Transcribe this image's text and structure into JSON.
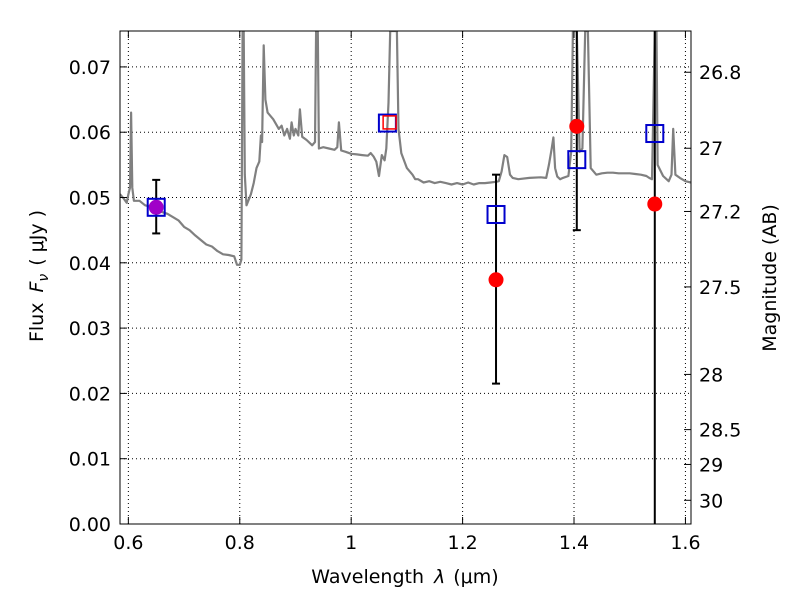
{
  "chart_data": {
    "type": "scatter",
    "xlabel_text": "Wavelength",
    "xlabel_symbol": "λ",
    "xlabel_unit": "(μm)",
    "ylabel_text": "Flux",
    "ylabel_symbol": "F",
    "ylabel_subscript": "ν",
    "ylabel_unit": "( μJy )",
    "y2label": "Magnitude (AB)",
    "xlim": [
      0.585,
      1.61
    ],
    "ylim": [
      0.0,
      0.0755
    ],
    "grid": true,
    "x_ticks": [
      0.6,
      0.8,
      1.0,
      1.2,
      1.4,
      1.6
    ],
    "x_tick_labels": [
      "0.6",
      "0.8",
      "1",
      "1.2",
      "1.4",
      "1.6"
    ],
    "y_ticks": [
      0.0,
      0.01,
      0.02,
      0.03,
      0.04,
      0.05,
      0.06,
      0.07
    ],
    "y_tick_labels": [
      "0.00",
      "0.01",
      "0.02",
      "0.03",
      "0.04",
      "0.05",
      "0.06",
      "0.07"
    ],
    "y2_ticks": [
      26.8,
      27.0,
      27.2,
      27.5,
      28.0,
      28.5,
      29.0,
      30.0
    ],
    "y2_tick_labels": [
      "26.8",
      "27",
      "27.2",
      "27.5",
      "28",
      "28.5",
      "29",
      "30"
    ],
    "colors": {
      "spectrum": "#808080",
      "observed": "#ff0000",
      "model": "#0000cc",
      "errorbar": "#000000"
    },
    "spectrum": [
      [
        0.585,
        0.0505
      ],
      [
        0.592,
        0.0498
      ],
      [
        0.597,
        0.0492
      ],
      [
        0.6,
        0.0505
      ],
      [
        0.603,
        0.0515
      ],
      [
        0.605,
        0.063
      ],
      [
        0.607,
        0.0515
      ],
      [
        0.61,
        0.0495
      ],
      [
        0.62,
        0.0495
      ],
      [
        0.63,
        0.0488
      ],
      [
        0.64,
        0.0486
      ],
      [
        0.65,
        0.0485
      ],
      [
        0.66,
        0.0478
      ],
      [
        0.67,
        0.0475
      ],
      [
        0.68,
        0.047
      ],
      [
        0.69,
        0.0465
      ],
      [
        0.7,
        0.0455
      ],
      [
        0.71,
        0.045
      ],
      [
        0.72,
        0.0442
      ],
      [
        0.73,
        0.0435
      ],
      [
        0.74,
        0.0428
      ],
      [
        0.75,
        0.0425
      ],
      [
        0.76,
        0.0418
      ],
      [
        0.77,
        0.0413
      ],
      [
        0.78,
        0.0412
      ],
      [
        0.79,
        0.041
      ],
      [
        0.795,
        0.0397
      ],
      [
        0.8,
        0.0397
      ],
      [
        0.803,
        0.0405
      ],
      [
        0.805,
        0.0755
      ],
      [
        0.807,
        0.0755
      ],
      [
        0.809,
        0.0535
      ],
      [
        0.812,
        0.0488
      ],
      [
        0.82,
        0.0505
      ],
      [
        0.825,
        0.0522
      ],
      [
        0.83,
        0.0545
      ],
      [
        0.835,
        0.0555
      ],
      [
        0.838,
        0.0595
      ],
      [
        0.84,
        0.0585
      ],
      [
        0.843,
        0.0733
      ],
      [
        0.846,
        0.065
      ],
      [
        0.85,
        0.063
      ],
      [
        0.86,
        0.062
      ],
      [
        0.87,
        0.0605
      ],
      [
        0.875,
        0.061
      ],
      [
        0.88,
        0.0595
      ],
      [
        0.885,
        0.0605
      ],
      [
        0.89,
        0.059
      ],
      [
        0.893,
        0.0615
      ],
      [
        0.897,
        0.0595
      ],
      [
        0.9,
        0.0605
      ],
      [
        0.905,
        0.0595
      ],
      [
        0.908,
        0.0635
      ],
      [
        0.912,
        0.0593
      ],
      [
        0.92,
        0.0588
      ],
      [
        0.93,
        0.058
      ],
      [
        0.935,
        0.0585
      ],
      [
        0.937,
        0.0755
      ],
      [
        0.94,
        0.0755
      ],
      [
        0.942,
        0.0575
      ],
      [
        0.95,
        0.0577
      ],
      [
        0.96,
        0.0575
      ],
      [
        0.97,
        0.0573
      ],
      [
        0.975,
        0.0577
      ],
      [
        0.978,
        0.0615
      ],
      [
        0.982,
        0.0572
      ],
      [
        0.99,
        0.057
      ],
      [
        1.0,
        0.0567
      ],
      [
        1.01,
        0.0566
      ],
      [
        1.02,
        0.0565
      ],
      [
        1.03,
        0.0564
      ],
      [
        1.035,
        0.0568
      ],
      [
        1.04,
        0.0563
      ],
      [
        1.045,
        0.0555
      ],
      [
        1.05,
        0.0533
      ],
      [
        1.055,
        0.0565
      ],
      [
        1.06,
        0.0557
      ],
      [
        1.063,
        0.0575
      ],
      [
        1.067,
        0.0645
      ],
      [
        1.07,
        0.0755
      ],
      [
        1.082,
        0.0755
      ],
      [
        1.085,
        0.0605
      ],
      [
        1.09,
        0.0568
      ],
      [
        1.1,
        0.0545
      ],
      [
        1.11,
        0.0535
      ],
      [
        1.115,
        0.0528
      ],
      [
        1.12,
        0.0528
      ],
      [
        1.13,
        0.0523
      ],
      [
        1.14,
        0.0525
      ],
      [
        1.15,
        0.0522
      ],
      [
        1.16,
        0.0524
      ],
      [
        1.17,
        0.0522
      ],
      [
        1.18,
        0.052
      ],
      [
        1.19,
        0.0522
      ],
      [
        1.2,
        0.052
      ],
      [
        1.21,
        0.0523
      ],
      [
        1.22,
        0.052
      ],
      [
        1.23,
        0.0522
      ],
      [
        1.24,
        0.0522
      ],
      [
        1.25,
        0.0523
      ],
      [
        1.26,
        0.0524
      ],
      [
        1.265,
        0.0525
      ],
      [
        1.27,
        0.054
      ],
      [
        1.275,
        0.0565
      ],
      [
        1.28,
        0.0562
      ],
      [
        1.285,
        0.0535
      ],
      [
        1.29,
        0.053
      ],
      [
        1.3,
        0.0528
      ],
      [
        1.32,
        0.053
      ],
      [
        1.34,
        0.0531
      ],
      [
        1.35,
        0.053
      ],
      [
        1.355,
        0.055
      ],
      [
        1.36,
        0.0575
      ],
      [
        1.363,
        0.0592
      ],
      [
        1.366,
        0.0545
      ],
      [
        1.37,
        0.0532
      ],
      [
        1.375,
        0.0528
      ],
      [
        1.38,
        0.053
      ],
      [
        1.39,
        0.0533
      ],
      [
        1.395,
        0.057
      ],
      [
        1.398,
        0.0755
      ],
      [
        1.405,
        0.0755
      ],
      [
        1.41,
        0.057
      ],
      [
        1.415,
        0.0575
      ],
      [
        1.42,
        0.0755
      ],
      [
        1.425,
        0.0755
      ],
      [
        1.43,
        0.0545
      ],
      [
        1.44,
        0.0535
      ],
      [
        1.45,
        0.0537
      ],
      [
        1.46,
        0.0538
      ],
      [
        1.47,
        0.0538
      ],
      [
        1.48,
        0.0537
      ],
      [
        1.49,
        0.0537
      ],
      [
        1.5,
        0.0537
      ],
      [
        1.51,
        0.0536
      ],
      [
        1.52,
        0.0535
      ],
      [
        1.53,
        0.0533
      ],
      [
        1.535,
        0.053
      ],
      [
        1.54,
        0.0528
      ],
      [
        1.545,
        0.0755
      ],
      [
        1.548,
        0.0755
      ],
      [
        1.55,
        0.055
      ],
      [
        1.56,
        0.0533
      ],
      [
        1.57,
        0.0525
      ],
      [
        1.575,
        0.0535
      ],
      [
        1.578,
        0.0605
      ],
      [
        1.582,
        0.0535
      ],
      [
        1.59,
        0.053
      ],
      [
        1.6,
        0.0525
      ],
      [
        1.61,
        0.0523
      ]
    ],
    "observed": [
      {
        "x": 0.65,
        "y": 0.0485,
        "yerr": 0.0042
      },
      {
        "x": 1.26,
        "y": 0.0374,
        "yerr": 0.016
      },
      {
        "x": 1.405,
        "y": 0.0609,
        "yerr": 0.016
      },
      {
        "x": 1.545,
        "y": 0.049,
        "yerr": 0.05
      }
    ],
    "model": [
      {
        "x": 0.65,
        "y": 0.0485
      },
      {
        "x": 1.065,
        "y": 0.0614
      },
      {
        "x": 1.26,
        "y": 0.0474
      },
      {
        "x": 1.405,
        "y": 0.0558
      },
      {
        "x": 1.545,
        "y": 0.0598
      }
    ],
    "error_bars": [
      {
        "x": 0.65,
        "ylow": 0.0445,
        "yhigh": 0.0527,
        "caps": true
      },
      {
        "x": 1.26,
        "ylow": 0.0215,
        "yhigh": 0.0535,
        "caps": true
      },
      {
        "x": 1.405,
        "ylow": 0.045,
        "yhigh": 0.0755,
        "caps": true
      },
      {
        "x": 1.545,
        "ylow": 0.0,
        "yhigh": 0.0755,
        "caps": false
      }
    ],
    "overlap_marker": {
      "x": 1.069,
      "y": 0.0615
    }
  }
}
